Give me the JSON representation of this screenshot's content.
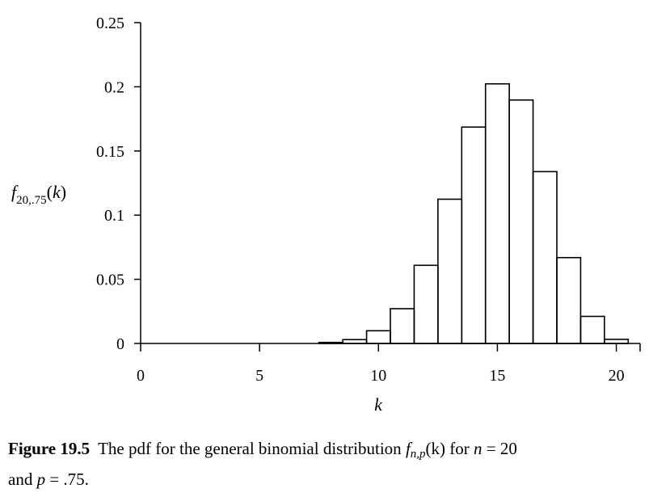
{
  "chart_data": {
    "type": "bar",
    "style": "step-histogram",
    "x": [
      8,
      9,
      10,
      11,
      12,
      13,
      14,
      15,
      16,
      17,
      18,
      19,
      20
    ],
    "values": [
      0.0008,
      0.003,
      0.0099,
      0.0271,
      0.0609,
      0.1124,
      0.1686,
      0.2023,
      0.1897,
      0.1339,
      0.0669,
      0.0211,
      0.0032
    ],
    "xlim": [
      0,
      21
    ],
    "ylim": [
      0,
      0.25
    ],
    "xticks": [
      0,
      5,
      10,
      15,
      20
    ],
    "yticks": [
      0,
      0.05,
      0.1,
      0.15,
      0.2,
      0.25
    ],
    "xtick_labels": [
      "0",
      "5",
      "10",
      "15",
      "20"
    ],
    "ytick_labels": [
      "0",
      "0.05",
      "0.1",
      "0.15",
      "0.2",
      "0.25"
    ],
    "xlabel": "k",
    "ylabel": {
      "main": "f",
      "sub": "20,.75",
      "arg": "(k)"
    },
    "grid": false
  },
  "caption": {
    "figure_number": "Figure 19.5",
    "text_before": "The pdf for the general binomial distribution ",
    "func": "f",
    "func_sub": "n,p",
    "func_arg": "(k)",
    "text_mid": " for ",
    "n_var": "n",
    "n_eq": " = 20",
    "line2_start": "and ",
    "p_var": "p",
    "p_eq": " = .75."
  }
}
